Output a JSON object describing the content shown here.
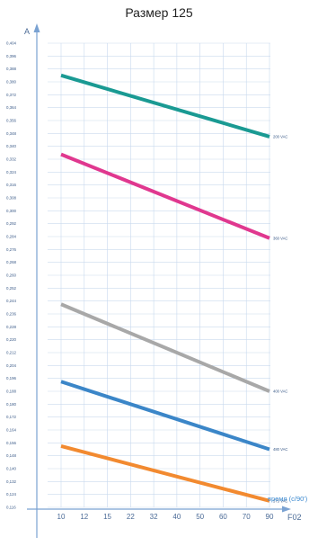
{
  "title": "Размер 125",
  "chart_data": {
    "type": "line",
    "title": "Размер 125",
    "ylabel": "A",
    "xlabel": "F02",
    "x_note": "время (с/90')",
    "grid": true,
    "ylim": [
      0.116,
      0.404
    ],
    "y_ticks": [
      "0,404",
      "0,396",
      "0,388",
      "0,380",
      "0,372",
      "0,364",
      "0,356",
      "0,348",
      "0,340",
      "0,332",
      "0,324",
      "0,316",
      "0,308",
      "0,300",
      "0,292",
      "0,284",
      "0,276",
      "0,268",
      "0,260",
      "0,252",
      "0,244",
      "0,236",
      "0,228",
      "0,220",
      "0,212",
      "0,204",
      "0,196",
      "0,188",
      "0,180",
      "0,172",
      "0,164",
      "0,156",
      "0,148",
      "0,140",
      "0,132",
      "0,124",
      "0,116"
    ],
    "categories": [
      "10",
      "12",
      "15",
      "22",
      "32",
      "40",
      "50",
      "60",
      "70",
      "90"
    ],
    "series": [
      {
        "name": "200 VAC",
        "color": "#1a9a93",
        "start": 0.384,
        "end": 0.346
      },
      {
        "name": "360 VAC",
        "color": "#e0388f",
        "start": 0.335,
        "end": 0.283
      },
      {
        "name": "400 VAC",
        "color": "#a8a8a8",
        "start": 0.242,
        "end": 0.188
      },
      {
        "name": "480 VAC",
        "color": "#3b86c8",
        "start": 0.194,
        "end": 0.152
      },
      {
        "name": "575 VAC",
        "color": "#f28a30",
        "start": 0.154,
        "end": 0.12
      }
    ]
  }
}
